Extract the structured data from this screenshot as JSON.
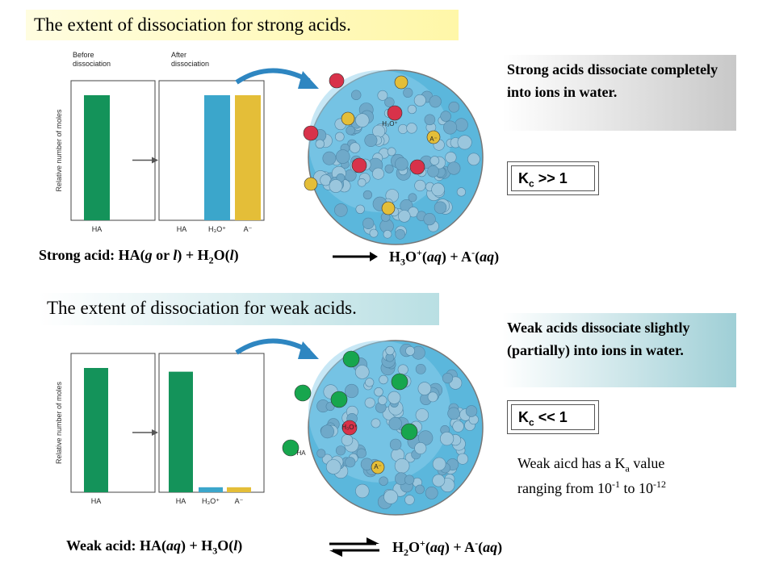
{
  "top": {
    "title": "The extent of dissociation for strong acids.",
    "note": "Strong acids dissociate completely into ions in water.",
    "k_sym": "K",
    "k_sub": "c",
    "k_rel": " >> 1",
    "chart_labels": {
      "before": "Before\ndissociation",
      "after": "After\ndissociation",
      "ylabel": "Relative number of moles",
      "ha": "HA",
      "h3o": "H₃O⁺",
      "a": "A⁻"
    },
    "equation": {
      "lead": "Strong acid:  HA(",
      "p1": "g",
      "p2": " or ",
      "p3": "l",
      "p4": ") + H",
      "s1": "2",
      "p5": "O(",
      "p6": "l",
      "p7": ")",
      "arrow": "→",
      "r1": "H",
      "rs1": "3",
      "r2": "O",
      "rsup1": "+",
      "r3": "(",
      "r4": "aq",
      "r5": ") + A",
      "rsup2": "-",
      "r6": "(",
      "r7": "aq",
      "r8": ")"
    }
  },
  "bottom": {
    "title": "The extent of dissociation for weak acids.",
    "note": "Weak acids dissociate slightly (partially) into ions in water.",
    "k_sym": "K",
    "k_sub": "c",
    "k_rel": " << 1",
    "weak_ka": {
      "l1a": "Weak aicd has a K",
      "l1sub": "a",
      "l1b": " value",
      "l2a": "ranging from 10",
      "l2sup1": "-1",
      "l2b": " to 10",
      "l2sup2": "-12"
    },
    "chart_labels": {
      "ylabel": "Relative number of moles",
      "ha": "HA",
      "h3o": "H₃O⁺",
      "a": "A⁻"
    },
    "equation": {
      "lead": "Weak acid:  HA(",
      "p1": "aq",
      "p2": ") + H",
      "s1": "3",
      "p3": "O(",
      "p4": "l",
      "p5": ")",
      "arrow": "⇌",
      "r1": "H",
      "rs1": "2",
      "r2": "O",
      "rsup1": "+",
      "r3": "(",
      "r4": "aq",
      "r5": ") + A",
      "rsup2": "-",
      "r6": "(",
      "r7": "aq",
      "r8": ")"
    }
  },
  "colors": {
    "ha_green": "#14935a",
    "h3o_blue": "#3ba6cb",
    "a_yellow": "#e4be38",
    "water_blue": "#7cc3df",
    "arrow_blue": "#2e86c1"
  },
  "chart_data": [
    {
      "type": "bar",
      "categories": [
        "HA",
        "HA",
        "H₃O⁺",
        "A⁻"
      ],
      "values": [
        100,
        0,
        100,
        100
      ],
      "groups": [
        "Before dissociation",
        "After dissociation"
      ],
      "ylabel": "Relative number of moles",
      "colors": [
        "#14935a",
        "#14935a",
        "#3ba6cb",
        "#e4be38"
      ]
    },
    {
      "type": "bar",
      "categories": [
        "HA",
        "HA",
        "H₃O⁺",
        "A⁻"
      ],
      "values": [
        100,
        97,
        4,
        4
      ],
      "ylabel": "Relative number of moles",
      "colors": [
        "#14935a",
        "#14935a",
        "#3ba6cb",
        "#e4be38"
      ]
    }
  ]
}
